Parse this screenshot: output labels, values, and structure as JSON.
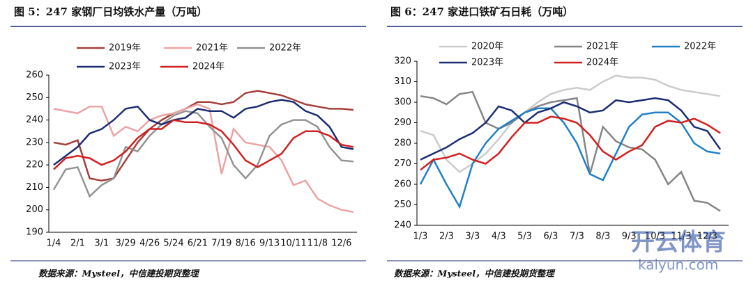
{
  "chart_data": [
    {
      "type": "line",
      "title": "图 5：247 家钢厂日均铁水产量（万吨）",
      "source": "数据来源：Mysteel，中信建投期货整理",
      "categories": [
        "1/4",
        null,
        "2/1",
        null,
        "3/1",
        null,
        "3/29",
        null,
        "4/26",
        null,
        "5/24",
        null,
        "6/21",
        null,
        "7/19",
        null,
        "8/16",
        null,
        "9/13",
        null,
        "10/11",
        null,
        "11/8",
        null,
        "12/6",
        null
      ],
      "ylim": [
        190,
        260
      ],
      "yticks": [
        190,
        200,
        210,
        220,
        230,
        240,
        250,
        260
      ],
      "series": [
        {
          "name": "2019年",
          "color": "#a5403a",
          "values": [
            230,
            229,
            231,
            214,
            213,
            214,
            222,
            230,
            236,
            240,
            243,
            245,
            248,
            248,
            247,
            248,
            252,
            253,
            252,
            251,
            249,
            247,
            246,
            245,
            245,
            244.5
          ]
        },
        {
          "name": "2021年",
          "color": "#eba3a3",
          "values": [
            245,
            244,
            243,
            246,
            246,
            233,
            237,
            235,
            240,
            242,
            243,
            245,
            247,
            245,
            216,
            236,
            230,
            229,
            228,
            222,
            211,
            213,
            205,
            202,
            200,
            199
          ]
        },
        {
          "name": "2022年",
          "color": "#939393",
          "values": [
            209,
            218,
            219,
            206,
            211,
            214,
            228,
            226,
            233,
            238,
            242,
            244,
            243,
            237,
            232,
            220,
            214,
            220,
            233,
            238,
            240,
            240,
            237,
            228,
            222,
            221.5
          ]
        },
        {
          "name": "2023年",
          "color": "#1b2d72",
          "values": [
            220,
            224,
            228,
            234,
            236,
            240,
            245,
            246,
            240,
            238,
            240,
            241,
            245,
            244,
            244,
            241,
            245,
            246,
            248,
            249,
            248,
            244,
            242,
            237,
            228,
            227
          ]
        },
        {
          "name": "2024年",
          "color": "#d21f1f",
          "values": [
            218,
            223,
            224,
            223,
            220,
            222,
            226,
            232,
            236,
            236,
            240,
            239,
            239,
            238,
            235,
            229,
            222,
            219,
            222,
            225,
            232,
            235,
            235,
            233,
            229,
            228
          ]
        }
      ]
    },
    {
      "type": "line",
      "title": "图 6：247 家进口铁矿石日耗（万吨）",
      "source": "数据来源：Mysteel，中信建投期货整理",
      "categories": [
        "1/3",
        null,
        "2/3",
        null,
        "3/3",
        null,
        "4/3",
        null,
        "5/3",
        null,
        "6/3",
        null,
        "7/3",
        null,
        "8/3",
        null,
        "9/3",
        null,
        "10/3",
        null,
        "11/3",
        null,
        "12/3",
        null
      ],
      "ylim": [
        240,
        320
      ],
      "yticks": [
        240,
        250,
        260,
        270,
        280,
        290,
        300,
        310,
        320
      ],
      "series": [
        {
          "name": "2020年",
          "color": "#cbcbcb",
          "values": [
            286,
            284,
            272,
            266,
            270,
            275,
            282,
            290,
            295,
            300,
            304,
            306,
            307,
            306,
            310,
            313,
            312,
            312,
            311,
            308,
            306,
            305,
            304,
            303
          ]
        },
        {
          "name": "2021年",
          "color": "#858585",
          "values": [
            303,
            302,
            299,
            304,
            305,
            290,
            287,
            290,
            295,
            298,
            300,
            301,
            302,
            265,
            288,
            281,
            278,
            277,
            272,
            260,
            266,
            252,
            251,
            247
          ]
        },
        {
          "name": "2022年",
          "color": "#1f80c8",
          "values": [
            260,
            272,
            260,
            249,
            270,
            280,
            287,
            291,
            295,
            297,
            297,
            290,
            280,
            265,
            262,
            275,
            288,
            294,
            295,
            295,
            290,
            280,
            276,
            275
          ]
        },
        {
          "name": "2023年",
          "color": "#1b2d72",
          "values": [
            272,
            275,
            278,
            282,
            285,
            290,
            298,
            296,
            290,
            295,
            297,
            300,
            298,
            295,
            296,
            301,
            300,
            301,
            302,
            301,
            296,
            288,
            286,
            277
          ]
        },
        {
          "name": "2024年",
          "color": "#d21f1f",
          "values": [
            267,
            272,
            273,
            275,
            272,
            270,
            275,
            283,
            290,
            290,
            293,
            292,
            290,
            284,
            276,
            272,
            276,
            279,
            288,
            291,
            290,
            292,
            289,
            285
          ]
        }
      ]
    }
  ],
  "watermark": {
    "brand": "开云体育",
    "url": "kaiyun.com"
  }
}
